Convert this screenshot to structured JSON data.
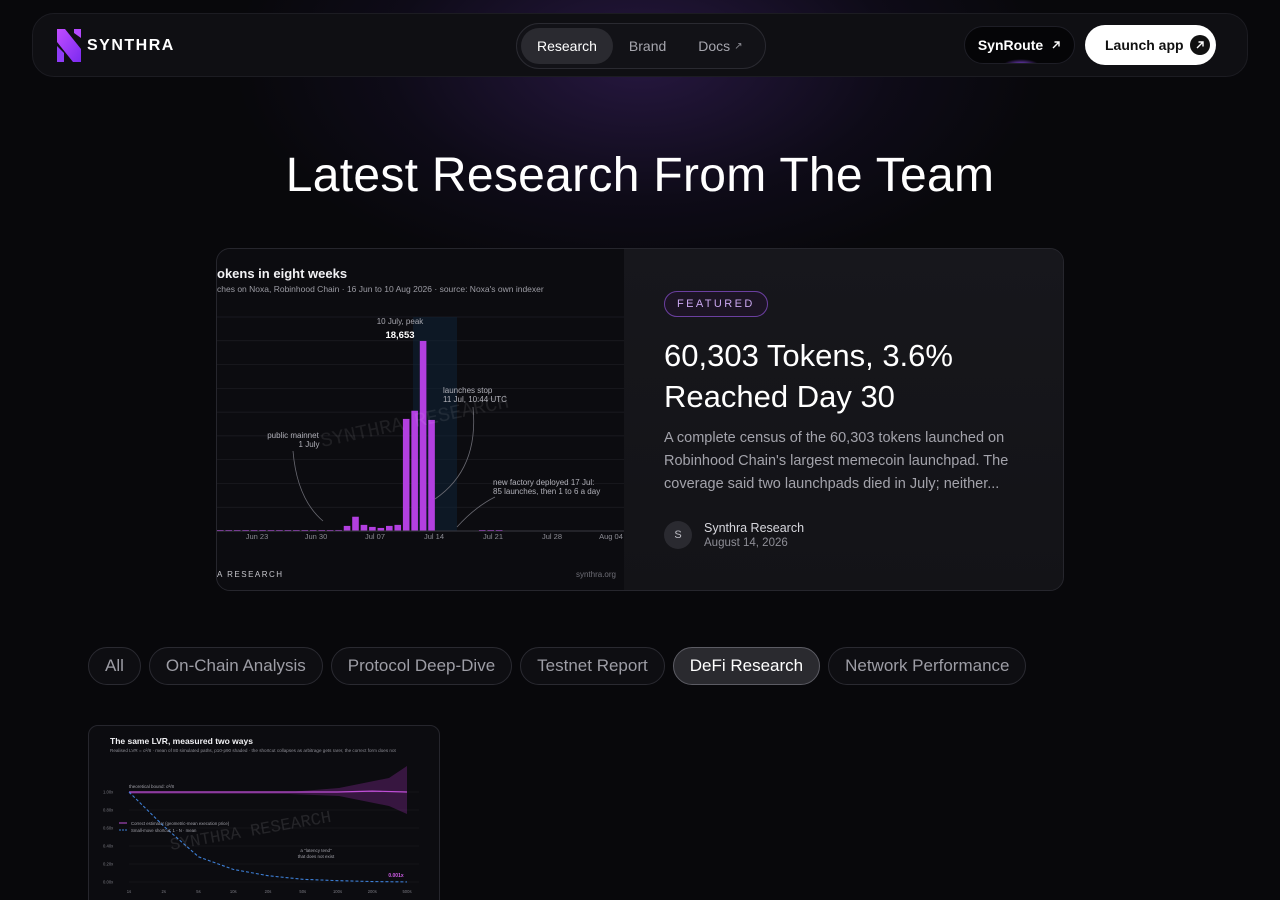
{
  "brand": {
    "name": "SYNTHRA"
  },
  "nav": {
    "items": [
      {
        "label": "Research",
        "active": true
      },
      {
        "label": "Brand",
        "active": false
      },
      {
        "label": "Docs",
        "active": false,
        "external": true
      }
    ],
    "synroute_label": "SynRoute",
    "launch_label": "Launch app"
  },
  "headline": "Latest Research From The Team",
  "featured": {
    "badge": "FEATURED",
    "title": "60,303 Tokens, 3.6% Reached Day 30",
    "excerpt": "A complete census of the 60,303 tokens launched on Robinhood Chain's largest memecoin launchpad. The coverage said two launchpads died in July; neither...",
    "author": {
      "initial": "S",
      "name": "Synthra Research",
      "date": "August 14, 2026"
    },
    "image": {
      "title": "okens in eight weeks",
      "subtitle": "ches on Noxa, Robinhood Chain · 16 Jun to 10 Aug 2026 · source: Noxa's own indexer",
      "peak_label": "10 July, peak",
      "peak_value": "18,653",
      "annotation_mainnet": [
        "public mainnet",
        "1 July"
      ],
      "annotation_stop": [
        "launches stop",
        "11 Jul, 10:44 UTC"
      ],
      "annotation_factory": [
        "new factory deployed 17 Jul:",
        "85 launches, then 1 to 6 a day"
      ],
      "watermark": "SYNTHRA RESEARCH",
      "footer_left": "A RESEARCH",
      "footer_right": "synthra.org",
      "chart_data": {
        "type": "bar",
        "title": "okens in eight weeks",
        "categories": [
          "Jun 16",
          "Jun 17",
          "Jun 18",
          "Jun 19",
          "Jun 20",
          "Jun 21",
          "Jun 22",
          "Jun 23",
          "Jun 24",
          "Jun 25",
          "Jun 26",
          "Jun 27",
          "Jun 28",
          "Jun 29",
          "Jun 30",
          "Jul 01",
          "Jul 02",
          "Jul 03",
          "Jul 04",
          "Jul 05",
          "Jul 06",
          "Jul 07",
          "Jul 08",
          "Jul 09",
          "Jul 10",
          "Jul 11",
          "Jul 12",
          "Jul 13",
          "Jul 14",
          "Jul 15",
          "Jul 16",
          "Jul 17",
          "Jul 18",
          "Jul 19"
        ],
        "values": [
          60,
          50,
          40,
          30,
          30,
          20,
          20,
          20,
          20,
          20,
          20,
          20,
          20,
          80,
          100,
          500,
          1400,
          600,
          400,
          300,
          500,
          600,
          11000,
          11800,
          18653,
          10900,
          0,
          0,
          0,
          0,
          0,
          85,
          4,
          3
        ],
        "x_ticks": [
          "Jun 23",
          "Jun 30",
          "Jul 07",
          "Jul 14",
          "Jul 21",
          "Jul 28",
          "Aug 04"
        ],
        "ylim": [
          0,
          21000
        ],
        "grid": true
      }
    }
  },
  "filters": [
    {
      "label": "All",
      "active": false
    },
    {
      "label": "On-Chain Analysis",
      "active": false
    },
    {
      "label": "Protocol Deep-Dive",
      "active": false
    },
    {
      "label": "Testnet Report",
      "active": false
    },
    {
      "label": "DeFi Research",
      "active": true
    },
    {
      "label": "Network Performance",
      "active": false
    }
  ],
  "card": {
    "title": "The same LVR, measured two ways",
    "subtitle": "Realised LVR = σ²/8 · mean of 80 simulated paths, p10-p90 shaded · the shortcut collapses as arbitrage gets rarer, the correct form does not",
    "legend": [
      "Correct estimator (geometric-mean execution price)",
      "Small-move shortcut: 1 - N · mean"
    ],
    "annotation_top": "theoretical bound: σ²/8",
    "annotation_mid": [
      "a \"latency tend\"",
      "that does not exist"
    ],
    "end_value": "0.001x",
    "watermark": "SYNTHRA RESEARCH",
    "chart_data": {
      "type": "line",
      "title": "The same LVR, measured two ways",
      "x": [
        "1s",
        "2s",
        "5s",
        "10s",
        "20s",
        "50s",
        "100s",
        "200s",
        "500s"
      ],
      "y_ticks": [
        "1.00x",
        "0.80x",
        "0.60x",
        "0.40x",
        "0.20x",
        "0.00x"
      ],
      "series": [
        {
          "name": "Correct estimator (geometric-mean execution price)",
          "values": [
            1.0,
            1.0,
            1.0,
            1.0,
            1.0,
            1.0,
            1.0,
            1.01,
            1.0
          ]
        },
        {
          "name": "Small-move shortcut: 1 - N · mean",
          "values": [
            1.0,
            0.62,
            0.28,
            0.14,
            0.07,
            0.03,
            0.015,
            0.005,
            0.001
          ]
        }
      ]
    }
  }
}
